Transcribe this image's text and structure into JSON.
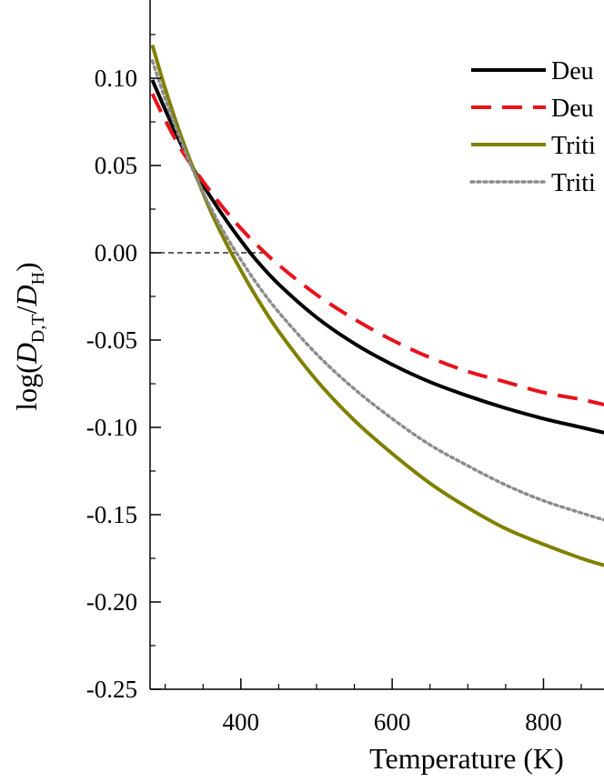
{
  "chart_data": {
    "type": "line",
    "title": "",
    "xlabel": "Temperature (K)",
    "ylabel": {
      "prefix": "log(",
      "num_main": "D",
      "num_sub": "D,T",
      "slash": "/",
      "den_main": "D",
      "den_sub": "H",
      "suffix": ")"
    },
    "xlim": [
      280,
      880
    ],
    "ylim": [
      -0.25,
      0.15
    ],
    "x_ticks": [
      400,
      600,
      800
    ],
    "x_tick_labels": [
      "400",
      "600",
      "800"
    ],
    "y_ticks": [
      0.1,
      0.05,
      0.0,
      -0.05,
      -0.1,
      -0.15,
      -0.2,
      -0.25
    ],
    "y_tick_labels": [
      "0.10",
      "0.05",
      "0.00",
      "-0.05",
      "-0.10",
      "-0.15",
      "-0.20",
      "-0.25"
    ],
    "grid": false,
    "legend_position": "top-right",
    "reference_line": {
      "y": 0.0,
      "x_range": [
        280,
        430
      ],
      "style": "dashed",
      "color": "#000000"
    },
    "series": [
      {
        "name": "Deu",
        "color": "#000000",
        "dash": "solid",
        "x": [
          283,
          300,
          320,
          340,
          360,
          380,
          400,
          420,
          450,
          500,
          550,
          600,
          650,
          700,
          750,
          800,
          850,
          880
        ],
        "y": [
          0.099,
          0.082,
          0.063,
          0.046,
          0.032,
          0.019,
          0.007,
          -0.004,
          -0.018,
          -0.037,
          -0.052,
          -0.064,
          -0.074,
          -0.082,
          -0.089,
          -0.095,
          -0.1,
          -0.103
        ]
      },
      {
        "name": "Deu",
        "color": "#e8121b",
        "dash": "dashed",
        "x": [
          283,
          300,
          320,
          340,
          360,
          380,
          400,
          420,
          450,
          500,
          550,
          600,
          650,
          700,
          750,
          800,
          850,
          880
        ],
        "y": [
          0.091,
          0.076,
          0.06,
          0.047,
          0.035,
          0.024,
          0.014,
          0.005,
          -0.007,
          -0.024,
          -0.038,
          -0.05,
          -0.06,
          -0.068,
          -0.074,
          -0.08,
          -0.084,
          -0.087
        ]
      },
      {
        "name": "Triti",
        "color": "#808000",
        "dash": "solid",
        "x": [
          283,
          300,
          320,
          340,
          360,
          380,
          400,
          420,
          450,
          500,
          550,
          600,
          650,
          700,
          750,
          800,
          850,
          880
        ],
        "y": [
          0.119,
          0.094,
          0.068,
          0.045,
          0.024,
          0.006,
          -0.01,
          -0.025,
          -0.045,
          -0.073,
          -0.096,
          -0.115,
          -0.132,
          -0.146,
          -0.158,
          -0.167,
          -0.175,
          -0.179
        ]
      },
      {
        "name": "Triti",
        "color": "#8c8c8c",
        "dash": "dotted",
        "x": [
          283,
          300,
          320,
          340,
          360,
          380,
          400,
          420,
          450,
          500,
          550,
          600,
          650,
          700,
          750,
          800,
          850,
          880
        ],
        "y": [
          0.11,
          0.088,
          0.065,
          0.044,
          0.026,
          0.01,
          -0.004,
          -0.017,
          -0.034,
          -0.058,
          -0.078,
          -0.095,
          -0.11,
          -0.122,
          -0.133,
          -0.142,
          -0.149,
          -0.153
        ]
      }
    ]
  }
}
